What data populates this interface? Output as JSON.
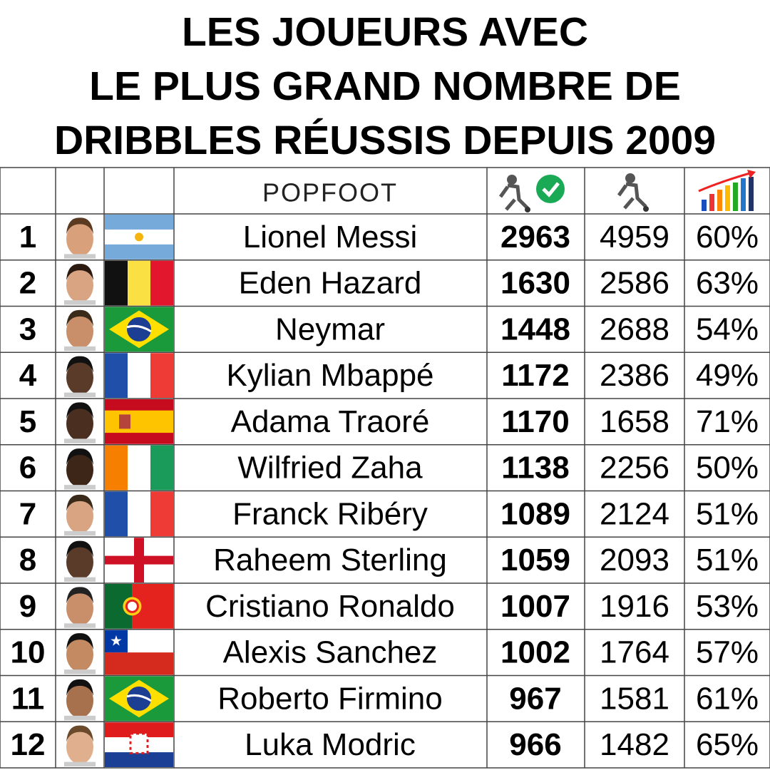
{
  "title": [
    "LES JOUEURS AVEC",
    "LE PLUS GRAND NOMBRE DE",
    "DRIBBLES RÉUSSIS DEPUIS 2009"
  ],
  "header": {
    "logo": "POPFOOT"
  },
  "table": {
    "rows": [
      {
        "rank": 1,
        "name": "Lionel Messi",
        "successful": 2963,
        "attempts": 4959,
        "rate": "60%"
      },
      {
        "rank": 2,
        "name": "Eden Hazard",
        "successful": 1630,
        "attempts": 2586,
        "rate": "63%"
      },
      {
        "rank": 3,
        "name": "Neymar",
        "successful": 1448,
        "attempts": 2688,
        "rate": "54%"
      },
      {
        "rank": 4,
        "name": "Kylian Mbappé",
        "successful": 1172,
        "attempts": 2386,
        "rate": "49%"
      },
      {
        "rank": 5,
        "name": "Adama Traoré",
        "successful": 1170,
        "attempts": 1658,
        "rate": "71%"
      },
      {
        "rank": 6,
        "name": "Wilfried Zaha",
        "successful": 1138,
        "attempts": 2256,
        "rate": "50%"
      },
      {
        "rank": 7,
        "name": "Franck Ribéry",
        "successful": 1089,
        "attempts": 2124,
        "rate": "51%"
      },
      {
        "rank": 8,
        "name": "Raheem Sterling",
        "successful": 1059,
        "attempts": 2093,
        "rate": "51%"
      },
      {
        "rank": 9,
        "name": "Cristiano Ronaldo",
        "successful": 1007,
        "attempts": 1916,
        "rate": "53%"
      },
      {
        "rank": 10,
        "name": "Alexis Sanchez",
        "successful": 1002,
        "attempts": 1764,
        "rate": "57%"
      },
      {
        "rank": 11,
        "name": "Roberto Firmino",
        "successful": 967,
        "attempts": 1581,
        "rate": "61%"
      },
      {
        "rank": 12,
        "name": "Luka Modric",
        "successful": 966,
        "attempts": 1482,
        "rate": "65%"
      }
    ]
  }
}
